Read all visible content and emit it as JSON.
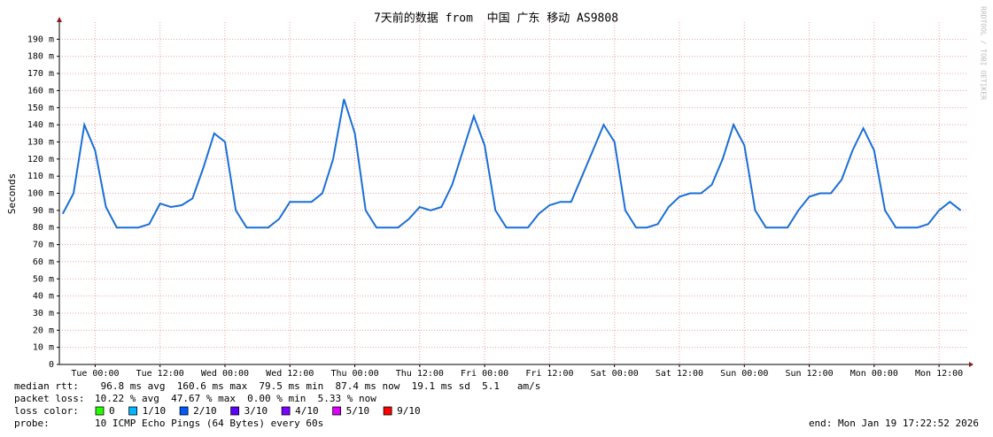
{
  "chart_data": {
    "type": "line",
    "title": "7天前的数据 from  中国 广东 移动 AS9808",
    "y_label": "Seconds",
    "watermark": "RRDTOOL / TOBI OETIKER",
    "ylim": [
      0,
      200
    ],
    "yticks": [
      0,
      {
        "value": 10,
        "label": "10 m"
      },
      {
        "value": 20,
        "label": "20 m"
      },
      {
        "value": 30,
        "label": "30 m"
      },
      {
        "value": 40,
        "label": "40 m"
      },
      {
        "value": 50,
        "label": "50 m"
      },
      {
        "value": 60,
        "label": "60 m"
      },
      {
        "value": 70,
        "label": "70 m"
      },
      {
        "value": 80,
        "label": "80 m"
      },
      {
        "value": 90,
        "label": "90 m"
      },
      {
        "value": 100,
        "label": "100 m"
      },
      {
        "value": 110,
        "label": "110 m"
      },
      {
        "value": 120,
        "label": "120 m"
      },
      {
        "value": 130,
        "label": "130 m"
      },
      {
        "value": 140,
        "label": "140 m"
      },
      {
        "value": 150,
        "label": "150 m"
      },
      {
        "value": 160,
        "label": "160 m"
      },
      {
        "value": 170,
        "label": "170 m"
      },
      {
        "value": 180,
        "label": "180 m"
      },
      {
        "value": 190,
        "label": "190 m"
      }
    ],
    "xlim": [
      "Mon 17:23",
      "Mon 17:23"
    ],
    "xticks": [
      "Tue 00:00",
      "Tue 12:00",
      "Wed 00:00",
      "Wed 12:00",
      "Thu 00:00",
      "Thu 12:00",
      "Fri 00:00",
      "Fri 12:00",
      "Sat 00:00",
      "Sat 12:00",
      "Sun 00:00",
      "Sun 12:00",
      "Mon 00:00",
      "Mon 12:00"
    ],
    "grid": true,
    "x": [
      "Mon 18:00",
      "Mon 20:00",
      "Mon 22:00",
      "Tue 00:00",
      "Tue 02:00",
      "Tue 04:00",
      "Tue 06:00",
      "Tue 08:00",
      "Tue 10:00",
      "Tue 12:00",
      "Tue 14:00",
      "Tue 16:00",
      "Tue 18:00",
      "Tue 20:00",
      "Tue 22:00",
      "Wed 00:00",
      "Wed 02:00",
      "Wed 04:00",
      "Wed 06:00",
      "Wed 08:00",
      "Wed 10:00",
      "Wed 12:00",
      "Wed 14:00",
      "Wed 16:00",
      "Wed 18:00",
      "Wed 20:00",
      "Wed 22:00",
      "Thu 00:00",
      "Thu 02:00",
      "Thu 04:00",
      "Thu 06:00",
      "Thu 08:00",
      "Thu 10:00",
      "Thu 12:00",
      "Thu 14:00",
      "Thu 16:00",
      "Thu 18:00",
      "Thu 20:00",
      "Thu 22:00",
      "Fri 00:00",
      "Fri 02:00",
      "Fri 04:00",
      "Fri 06:00",
      "Fri 08:00",
      "Fri 10:00",
      "Fri 12:00",
      "Fri 14:00",
      "Fri 16:00",
      "Fri 18:00",
      "Fri 20:00",
      "Fri 22:00",
      "Sat 00:00",
      "Sat 02:00",
      "Sat 04:00",
      "Sat 06:00",
      "Sat 08:00",
      "Sat 10:00",
      "Sat 12:00",
      "Sat 14:00",
      "Sat 16:00",
      "Sat 18:00",
      "Sat 20:00",
      "Sat 22:00",
      "Sun 00:00",
      "Sun 02:00",
      "Sun 04:00",
      "Sun 06:00",
      "Sun 08:00",
      "Sun 10:00",
      "Sun 12:00",
      "Sun 14:00",
      "Sun 16:00",
      "Sun 18:00",
      "Sun 20:00",
      "Sun 22:00",
      "Mon 00:00",
      "Mon 02:00",
      "Mon 04:00",
      "Mon 06:00",
      "Mon 08:00",
      "Mon 10:00",
      "Mon 12:00",
      "Mon 14:00",
      "Mon 16:00"
    ],
    "series": [
      {
        "color": "#1a6fd6",
        "values": [
          88,
          100,
          140,
          125,
          92,
          80,
          80,
          80,
          82,
          94,
          92,
          93,
          97,
          115,
          135,
          130,
          90,
          80,
          80,
          80,
          85,
          95,
          95,
          95,
          100,
          120,
          155,
          135,
          90,
          80,
          80,
          80,
          85,
          92,
          90,
          92,
          105,
          125,
          145,
          128,
          90,
          80,
          80,
          80,
          88,
          93,
          95,
          95,
          110,
          125,
          140,
          130,
          90,
          80,
          80,
          82,
          92,
          98,
          100,
          100,
          105,
          120,
          140,
          128,
          90,
          80,
          80,
          80,
          90,
          98,
          100,
          100,
          108,
          125,
          138,
          125,
          90,
          80,
          80,
          80,
          82,
          90,
          95,
          90
        ]
      }
    ],
    "stats": [
      {
        "label": "median rtt:",
        "text": " 96.8 ms avg  160.6 ms max  79.5 ms min  87.4 ms now  19.1 ms sd  5.1   am/s"
      },
      {
        "label": "packet loss:",
        "text": "10.22 % avg  47.67 % max  0.00 % min  5.33 % now"
      }
    ],
    "loss_label": "loss color:",
    "loss_colors": [
      {
        "label": "0",
        "color": "#26ff00"
      },
      {
        "label": "1/10",
        "color": "#00b8ff"
      },
      {
        "label": "2/10",
        "color": "#0059ff"
      },
      {
        "label": "3/10",
        "color": "#5e00ff"
      },
      {
        "label": "4/10",
        "color": "#7e00ff"
      },
      {
        "label": "5/10",
        "color": "#dd00ff"
      },
      {
        "label": "9/10",
        "color": "#ff0000"
      }
    ],
    "probe_label": "probe:",
    "probe": "10 ICMP Echo Pings (64 Bytes) every 60s",
    "end": "end: Mon Jan 19 17:22:52 2026"
  }
}
